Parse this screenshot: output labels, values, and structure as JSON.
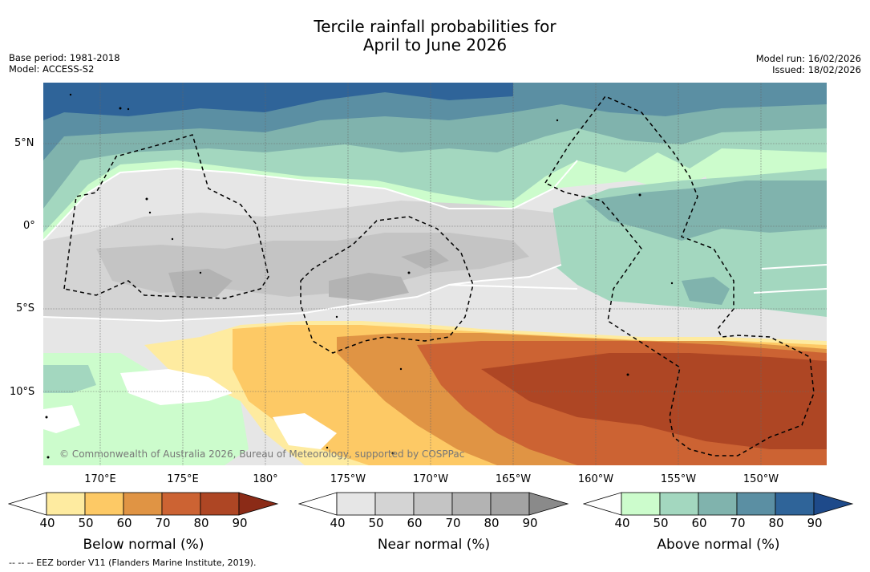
{
  "title_line1": "Tercile rainfall probabilities for",
  "title_line2": "April to June 2026",
  "base_period": "Base period: 1981-2018",
  "model": "Model: ACCESS-S2",
  "model_run": "Model run: 16/02/2026",
  "issued": "Issued: 18/02/2026",
  "lat_labels": [
    "5°N",
    "0°",
    "5°S",
    "10°S"
  ],
  "lon_labels": [
    "170°E",
    "175°E",
    "180°",
    "175°W",
    "170°W",
    "165°W",
    "160°W",
    "155°W",
    "150°W"
  ],
  "copyright": "© Commonwealth of Australia 2026, Bureau of Meteorology, supported by COSPPac",
  "colorbars": [
    {
      "label": "Below normal (%)",
      "ticks": [
        "40",
        "50",
        "60",
        "70",
        "80",
        "90"
      ],
      "colors": [
        "#ffffff",
        "#feeba0",
        "#fdc965",
        "#e09444",
        "#cc6333",
        "#ae4624",
        "#8b2b17"
      ]
    },
    {
      "label": "Near normal (%)",
      "ticks": [
        "40",
        "50",
        "60",
        "70",
        "80",
        "90"
      ],
      "colors": [
        "#ffffff",
        "#e6e6e6",
        "#d4d4d4",
        "#c4c4c4",
        "#b3b3b3",
        "#a3a3a3",
        "#8a8a8a"
      ]
    },
    {
      "label": "Above normal (%)",
      "ticks": [
        "40",
        "50",
        "60",
        "70",
        "80",
        "90"
      ],
      "colors": [
        "#ffffff",
        "#ccfccc",
        "#a3d7bf",
        "#80b3ad",
        "#5b8fa3",
        "#2f6499",
        "#1e4a8a"
      ]
    }
  ],
  "footnote": "--  --  -- EEZ border V11 (Flanders Marine Institute, 2019)."
}
